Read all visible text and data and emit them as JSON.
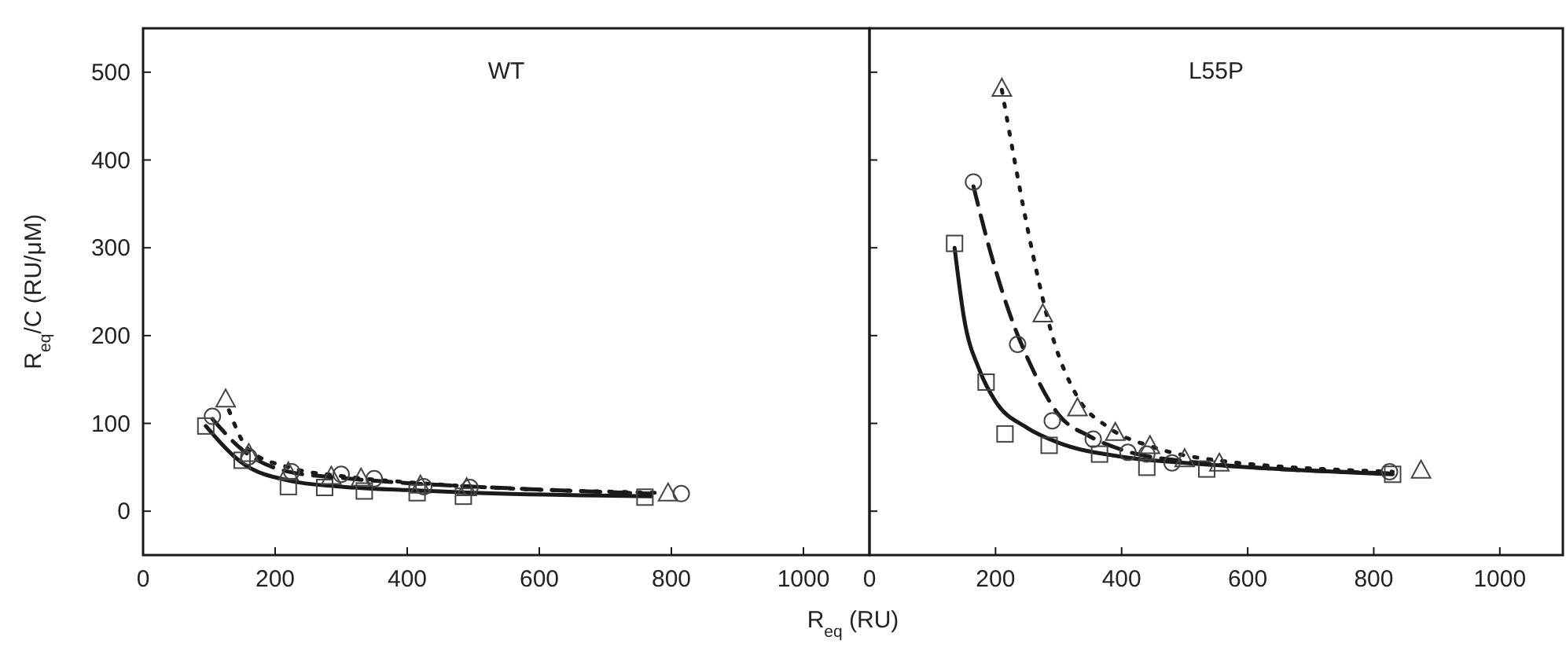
{
  "chart_data": [
    {
      "type": "scatter",
      "title": "WT",
      "xlabel": "R$_{eq}$ (RU)",
      "ylabel": "R$_{eq}$/C (RU/μM)",
      "xlim": [
        0,
        1100
      ],
      "ylim": [
        -50,
        550
      ],
      "xticks": [
        0,
        200,
        400,
        600,
        800,
        1000
      ],
      "yticks": [
        0,
        100,
        200,
        300,
        400,
        500
      ],
      "grid": false,
      "series": [
        {
          "type": "line",
          "line_style": "solid",
          "color": "#1a1a1a",
          "x": [
            95,
            150,
            220,
            300,
            400,
            500,
            770
          ],
          "values": [
            97,
            55,
            35,
            28,
            24,
            21,
            17
          ]
        },
        {
          "type": "line",
          "line_style": "dashed",
          "color": "#1a1a1a",
          "x": [
            105,
            150,
            220,
            300,
            400,
            500,
            770
          ],
          "values": [
            105,
            70,
            45,
            38,
            32,
            28,
            20
          ]
        },
        {
          "type": "line",
          "line_style": "dotted",
          "color": "#1a1a1a",
          "x": [
            130,
            160,
            220,
            300,
            400,
            500,
            780
          ],
          "values": [
            115,
            70,
            50,
            40,
            33,
            28,
            21
          ]
        },
        {
          "marker": "square",
          "color": "#444444",
          "x": [
            95,
            150,
            220,
            275,
            335,
            415,
            485,
            760
          ],
          "values": [
            97,
            58,
            28,
            27,
            23,
            21,
            17,
            16
          ]
        },
        {
          "marker": "circle",
          "color": "#444444",
          "x": [
            105,
            160,
            225,
            300,
            350,
            425,
            495,
            815
          ],
          "values": [
            108,
            62,
            45,
            42,
            37,
            28,
            27,
            20
          ]
        },
        {
          "marker": "triangle",
          "color": "#444444",
          "x": [
            125,
            160,
            220,
            285,
            330,
            420,
            490,
            795
          ],
          "values": [
            128,
            66,
            45,
            40,
            38,
            30,
            27,
            21
          ]
        }
      ]
    },
    {
      "type": "scatter",
      "title": "L55P",
      "xlim": [
        0,
        1100
      ],
      "ylim": [
        -50,
        550
      ],
      "xticks": [
        0,
        200,
        400,
        600,
        800,
        1000
      ],
      "yticks": [
        0,
        100,
        200,
        300,
        400,
        500
      ],
      "tick_labels": "x",
      "grid": false,
      "series": [
        {
          "type": "line",
          "line_style": "solid",
          "color": "#1a1a1a",
          "x": [
            135,
            150,
            175,
            200,
            250,
            300,
            400,
            500,
            600,
            830
          ],
          "values": [
            300,
            220,
            160,
            125,
            95,
            78,
            62,
            55,
            50,
            42
          ]
        },
        {
          "type": "line",
          "line_style": "dashed",
          "color": "#1a1a1a",
          "x": [
            165,
            190,
            220,
            260,
            300,
            350,
            400,
            500,
            830
          ],
          "values": [
            370,
            300,
            230,
            160,
            110,
            85,
            70,
            57,
            43
          ]
        },
        {
          "type": "line",
          "line_style": "dotted",
          "color": "#1a1a1a",
          "x": [
            210,
            230,
            260,
            290,
            330,
            380,
            450,
            550,
            830
          ],
          "values": [
            480,
            400,
            290,
            200,
            130,
            95,
            73,
            58,
            45
          ]
        },
        {
          "marker": "square",
          "color": "#444444",
          "x": [
            135,
            185,
            215,
            285,
            365,
            440,
            535,
            830
          ],
          "values": [
            305,
            147,
            88,
            75,
            65,
            50,
            48,
            42
          ]
        },
        {
          "marker": "circle",
          "color": "#444444",
          "x": [
            165,
            235,
            290,
            355,
            410,
            440,
            480,
            825
          ],
          "values": [
            375,
            190,
            103,
            82,
            67,
            65,
            55,
            45
          ]
        },
        {
          "marker": "triangle",
          "color": "#444444",
          "x": [
            210,
            275,
            330,
            390,
            445,
            500,
            555,
            875
          ],
          "values": [
            482,
            225,
            118,
            90,
            75,
            60,
            55,
            47
          ]
        }
      ]
    }
  ]
}
